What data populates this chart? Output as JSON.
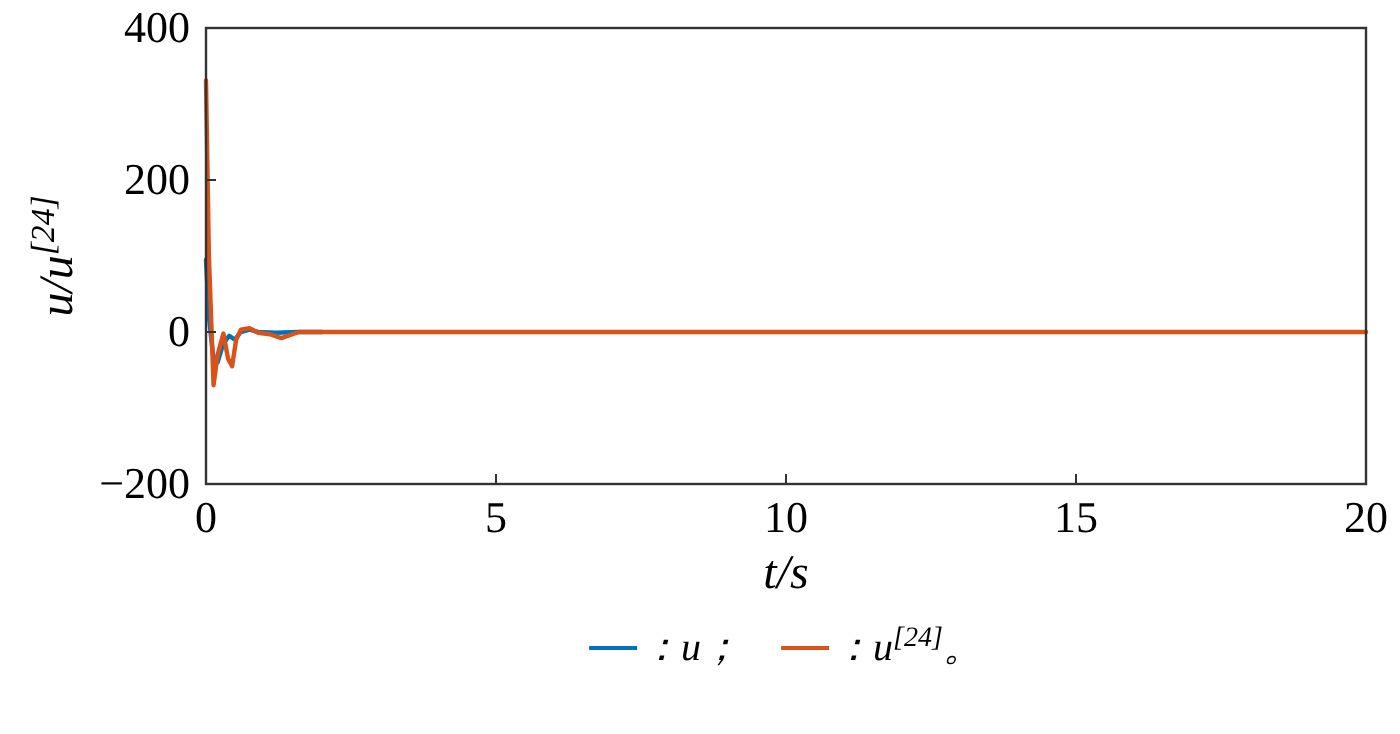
{
  "chart_data": {
    "type": "line",
    "xlabel": "t/s",
    "ylabel": "u/u$^{[24]}$",
    "xlim": [
      0,
      20
    ],
    "ylim": [
      -200,
      400
    ],
    "xticks": [
      0,
      5,
      10,
      15,
      20
    ],
    "yticks": [
      {
        "value": -200,
        "label": "−200"
      },
      0,
      200,
      400
    ],
    "grid": false,
    "legend": "bottom",
    "line_style": "solid",
    "series": [
      {
        "name": "：u；",
        "color": "#0072bd",
        "x": [
          0,
          0.05,
          0.12,
          0.2,
          0.3,
          0.4,
          0.5,
          0.6,
          0.75,
          0.9,
          1.2,
          1.6,
          2
        ],
        "values": [
          95,
          20,
          -30,
          -40,
          -15,
          -5,
          -10,
          0,
          3,
          0,
          -1,
          0,
          0
        ]
      },
      {
        "name": "：u$^{[24]}$。",
        "color": "#d95319",
        "x": [
          0,
          0.05,
          0.13,
          0.2,
          0.3,
          0.38,
          0.45,
          0.52,
          0.6,
          0.75,
          0.9,
          1.1,
          1.3,
          1.6,
          2,
          5,
          10,
          15,
          20
        ],
        "values": [
          331,
          100,
          -70,
          -30,
          -2,
          -35,
          -45,
          -10,
          3,
          5,
          -1,
          -3,
          -8,
          0,
          0,
          0,
          0,
          0,
          0
        ]
      }
    ]
  }
}
